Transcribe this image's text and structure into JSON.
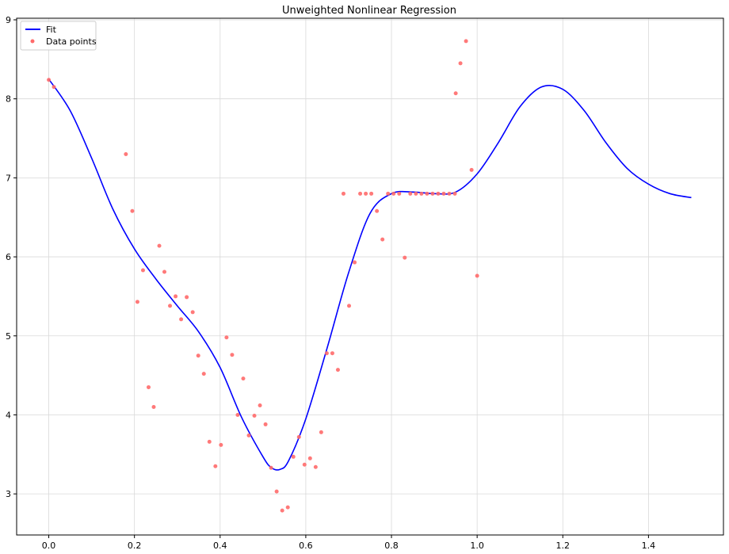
{
  "chart_data": {
    "type": "scatter",
    "title": "Unweighted Nonlinear Regression",
    "xlabel": "",
    "ylabel": "",
    "xlim": [
      -0.075,
      1.575
    ],
    "ylim": [
      2.48,
      9.02
    ],
    "xticks": [
      0.0,
      0.2,
      0.4,
      0.6,
      0.8,
      1.0,
      1.2,
      1.4
    ],
    "xtick_labels": [
      "0.0",
      "0.2",
      "0.4",
      "0.6",
      "0.8",
      "1.0",
      "1.2",
      "1.4"
    ],
    "yticks": [
      3,
      4,
      5,
      6,
      7,
      8,
      9
    ],
    "ytick_labels": [
      "3",
      "4",
      "5",
      "6",
      "7",
      "8",
      "9"
    ],
    "grid": true,
    "legend_position": "top-left",
    "series": [
      {
        "name": "Fit",
        "kind": "line",
        "color": "#0000ff",
        "x": [
          0.0,
          0.05,
          0.1,
          0.15,
          0.2,
          0.25,
          0.3,
          0.35,
          0.4,
          0.45,
          0.5,
          0.52,
          0.54,
          0.56,
          0.6,
          0.65,
          0.7,
          0.75,
          0.8,
          0.85,
          0.9,
          0.95,
          1.0,
          1.05,
          1.1,
          1.15,
          1.2,
          1.25,
          1.3,
          1.35,
          1.4,
          1.45,
          1.5
        ],
        "y": [
          8.25,
          7.85,
          7.25,
          6.6,
          6.1,
          5.72,
          5.38,
          5.05,
          4.6,
          3.97,
          3.47,
          3.33,
          3.31,
          3.42,
          3.95,
          4.85,
          5.8,
          6.55,
          6.8,
          6.82,
          6.8,
          6.82,
          7.05,
          7.45,
          7.9,
          8.15,
          8.12,
          7.85,
          7.45,
          7.12,
          6.92,
          6.8,
          6.75
        ]
      },
      {
        "name": "Data points",
        "kind": "scatter",
        "color": "#ff6a6a",
        "x": [
          0.0,
          0.012,
          0.18,
          0.195,
          0.207,
          0.22,
          0.233,
          0.245,
          0.258,
          0.27,
          0.283,
          0.296,
          0.309,
          0.322,
          0.336,
          0.349,
          0.362,
          0.375,
          0.389,
          0.402,
          0.415,
          0.428,
          0.441,
          0.454,
          0.467,
          0.48,
          0.493,
          0.506,
          0.519,
          0.532,
          0.545,
          0.558,
          0.571,
          0.584,
          0.597,
          0.61,
          0.623,
          0.636,
          0.649,
          0.662,
          0.675,
          0.688,
          0.701,
          0.714,
          0.727,
          0.74,
          0.753,
          0.766,
          0.779,
          0.792,
          0.805,
          0.818,
          0.831,
          0.844,
          0.857,
          0.87,
          0.883,
          0.896,
          0.909,
          0.922,
          0.935,
          0.948,
          0.95,
          0.961,
          0.974,
          0.987,
          1.0
        ],
        "y": [
          8.24,
          8.15,
          7.3,
          6.58,
          5.43,
          5.83,
          4.35,
          4.1,
          6.14,
          5.81,
          5.38,
          5.5,
          5.21,
          5.49,
          5.3,
          4.75,
          4.52,
          3.66,
          3.35,
          3.62,
          4.98,
          4.76,
          4.0,
          4.46,
          3.74,
          3.99,
          4.12,
          3.88,
          3.33,
          3.03,
          2.79,
          2.83,
          3.47,
          3.72,
          3.37,
          3.45,
          3.34,
          3.78,
          4.78,
          4.78,
          4.57,
          6.8,
          5.38,
          5.93,
          6.8,
          6.8,
          6.8,
          6.58,
          6.22,
          6.8,
          6.8,
          6.8,
          5.99,
          6.8,
          6.8,
          6.8,
          6.8,
          6.8,
          6.8,
          6.8,
          6.8,
          6.8,
          8.07,
          8.45,
          8.73,
          7.1,
          5.76
        ]
      }
    ]
  }
}
